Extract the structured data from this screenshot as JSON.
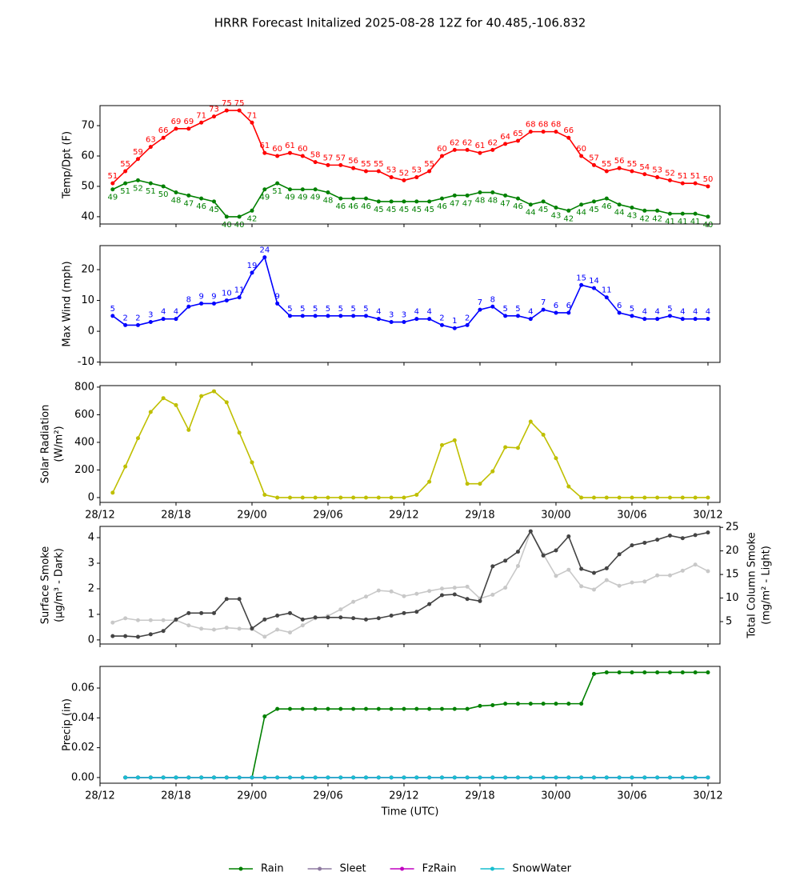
{
  "title": "HRRR Forecast Initalized 2025-08-28 12Z for 40.485,-106.832",
  "xlabel": "Time (UTC)",
  "xlim": [
    12,
    60.95
  ],
  "xticks": [
    {
      "value": 12,
      "label": "28/12"
    },
    {
      "value": 18,
      "label": "28/18"
    },
    {
      "value": 24,
      "label": "29/00"
    },
    {
      "value": 30,
      "label": "29/06"
    },
    {
      "value": 36,
      "label": "29/12"
    },
    {
      "value": 42,
      "label": "29/18"
    },
    {
      "value": 48,
      "label": "30/00"
    },
    {
      "value": 54,
      "label": "30/06"
    },
    {
      "value": 60,
      "label": "30/12"
    }
  ],
  "chart_data": [
    {
      "type": "line",
      "ylabel": [
        "Temp/Dpt (F)"
      ],
      "ylim": [
        37.6,
        76.6
      ],
      "yticks": [
        40,
        50,
        60,
        70
      ],
      "tick_labels": false,
      "x": [
        13,
        14,
        15,
        16,
        17,
        18,
        19,
        20,
        21,
        22,
        23,
        24,
        25,
        26,
        27,
        28,
        29,
        30,
        31,
        32,
        33,
        34,
        35,
        36,
        37,
        38,
        39,
        40,
        41,
        42,
        43,
        44,
        45,
        46,
        47,
        48,
        49,
        50,
        51,
        52,
        53,
        54,
        55,
        56,
        57,
        58,
        59,
        60
      ],
      "series": [
        {
          "color": "#ff0000",
          "labels": "above",
          "values": [
            51,
            55,
            59,
            63,
            66,
            69,
            69,
            71,
            73,
            75,
            75,
            71,
            61,
            60,
            61,
            60,
            58,
            57,
            57,
            56,
            55,
            55,
            53,
            52,
            53,
            55,
            60,
            62,
            62,
            61,
            62,
            64,
            65,
            68,
            68,
            68,
            66,
            60,
            57,
            55,
            56,
            55,
            54,
            53,
            52,
            51,
            51,
            50
          ]
        },
        {
          "color": "#008000",
          "labels": "below",
          "values": [
            49,
            51,
            52,
            51,
            50,
            48,
            47,
            46,
            45,
            40,
            40,
            42,
            49,
            51,
            49,
            49,
            49,
            48,
            46,
            46,
            46,
            45,
            45,
            45,
            45,
            45,
            46,
            47,
            47,
            48,
            48,
            47,
            46,
            44,
            45,
            43,
            42,
            44,
            45,
            46,
            44,
            43,
            42,
            42,
            41,
            41,
            41,
            40
          ]
        }
      ]
    },
    {
      "type": "line",
      "ylabel": [
        "Max Wind (mph)"
      ],
      "ylim": [
        -10.1,
        27.8
      ],
      "yticks": [
        -10,
        0,
        10,
        20
      ],
      "tick_labels": false,
      "x": [
        13,
        14,
        15,
        16,
        17,
        18,
        19,
        20,
        21,
        22,
        23,
        24,
        25,
        26,
        27,
        28,
        29,
        30,
        31,
        32,
        33,
        34,
        35,
        36,
        37,
        38,
        39,
        40,
        41,
        42,
        43,
        44,
        45,
        46,
        47,
        48,
        49,
        50,
        51,
        52,
        53,
        54,
        55,
        56,
        57,
        58,
        59,
        60
      ],
      "series": [
        {
          "color": "#0000ff",
          "labels": "above",
          "values": [
            5,
            2,
            2,
            3,
            4,
            4,
            8,
            9,
            9,
            10,
            11,
            19,
            24,
            9,
            5,
            5,
            5,
            5,
            5,
            5,
            5,
            4,
            3,
            3,
            4,
            4,
            2,
            1,
            2,
            7,
            8,
            5,
            5,
            4,
            7,
            6,
            6,
            15,
            14,
            11,
            6,
            5,
            4,
            4,
            5,
            4,
            4,
            4
          ]
        }
      ]
    },
    {
      "type": "line",
      "ylabel": [
        "Solar Radiation",
        "(W/m²)"
      ],
      "ylim": [
        -35,
        811
      ],
      "yticks": [
        0,
        200,
        400,
        600,
        800
      ],
      "tick_labels": true,
      "x": [
        13,
        14,
        15,
        16,
        17,
        18,
        19,
        20,
        21,
        22,
        23,
        24,
        25,
        26,
        27,
        28,
        29,
        30,
        31,
        32,
        33,
        34,
        35,
        36,
        37,
        38,
        39,
        40,
        41,
        42,
        43,
        44,
        45,
        46,
        47,
        48,
        49,
        50,
        51,
        52,
        53,
        54,
        55,
        56,
        57,
        58,
        59,
        60
      ],
      "series": [
        {
          "color": "#bfbf00",
          "values": [
            35,
            225,
            430,
            620,
            720,
            670,
            490,
            735,
            770,
            690,
            470,
            255,
            20,
            0,
            0,
            0,
            0,
            0,
            0,
            0,
            0,
            0,
            0,
            0,
            20,
            115,
            380,
            415,
            100,
            100,
            190,
            365,
            360,
            550,
            455,
            285,
            80,
            0,
            0,
            0,
            0,
            0,
            0,
            0,
            0,
            0,
            0,
            0
          ]
        }
      ]
    },
    {
      "type": "line",
      "ylabel": [
        "Surface Smoke",
        "(µg/m³ - Dark)"
      ],
      "y2label": [
        "Total Column Smoke",
        "(mg/m² - Light)"
      ],
      "ylim": [
        -0.16,
        4.44
      ],
      "yticks": [
        0,
        1,
        2,
        3,
        4
      ],
      "y2lim": [
        0.25,
        25.2
      ],
      "y2ticks": [
        5,
        10,
        15,
        20,
        25
      ],
      "tick_labels": false,
      "x": [
        13,
        14,
        15,
        16,
        17,
        18,
        19,
        20,
        21,
        22,
        23,
        24,
        25,
        26,
        27,
        28,
        29,
        30,
        31,
        32,
        33,
        34,
        35,
        36,
        37,
        38,
        39,
        40,
        41,
        42,
        43,
        44,
        45,
        46,
        47,
        48,
        49,
        50,
        51,
        52,
        53,
        54,
        55,
        56,
        57,
        58,
        59,
        60
      ],
      "series": [
        {
          "color": "#c8c8c8",
          "axis": "y2",
          "values": [
            4.8,
            5.7,
            5.3,
            5.3,
            5.3,
            5.3,
            4.2,
            3.5,
            3.3,
            3.7,
            3.5,
            3.4,
            1.8,
            3.3,
            2.7,
            4.2,
            5.7,
            6.2,
            7.6,
            9.2,
            10.3,
            11.6,
            11.4,
            10.4,
            10.9,
            11.5,
            12.0,
            12.2,
            12.4,
            9.9,
            10.7,
            12.2,
            16.8,
            24.1,
            19.3,
            14.7,
            16.0,
            12.5,
            11.8,
            13.8,
            12.6,
            13.3,
            13.5,
            14.8,
            14.8,
            15.8,
            17.1,
            15.7
          ]
        },
        {
          "color": "#444444",
          "values": [
            0.15,
            0.15,
            0.12,
            0.22,
            0.35,
            0.8,
            1.05,
            1.05,
            1.05,
            1.6,
            1.6,
            0.45,
            0.8,
            0.95,
            1.05,
            0.8,
            0.88,
            0.88,
            0.88,
            0.85,
            0.8,
            0.85,
            0.95,
            1.05,
            1.1,
            1.4,
            1.75,
            1.78,
            1.6,
            1.52,
            2.88,
            3.1,
            3.45,
            4.25,
            3.3,
            3.5,
            4.05,
            2.78,
            2.62,
            2.8,
            3.35,
            3.7,
            3.8,
            3.92,
            4.08,
            3.98,
            4.1,
            4.2
          ]
        }
      ]
    },
    {
      "type": "line",
      "ylabel": [
        "Precip (in)"
      ],
      "ylim": [
        -0.0038,
        0.0745
      ],
      "yticks": [
        {
          "value": 0,
          "label": "0.00"
        },
        {
          "value": 0.02,
          "label": "0.02"
        },
        {
          "value": 0.04,
          "label": "0.04"
        },
        {
          "value": 0.06,
          "label": "0.06"
        }
      ],
      "tick_labels": true,
      "legend": "lower center",
      "x": [
        14,
        15,
        16,
        17,
        18,
        19,
        20,
        21,
        22,
        23,
        24,
        25,
        26,
        27,
        28,
        29,
        30,
        31,
        32,
        33,
        34,
        35,
        36,
        37,
        38,
        39,
        40,
        41,
        42,
        43,
        44,
        45,
        46,
        47,
        48,
        49,
        50,
        51,
        52,
        53,
        54,
        55,
        56,
        57,
        58,
        59,
        60
      ],
      "series": [
        {
          "name": "Rain",
          "color": "#008000",
          "values": [
            0,
            0,
            0,
            0,
            0,
            0,
            0,
            0,
            0,
            0,
            0,
            0.041,
            0.046,
            0.046,
            0.046,
            0.046,
            0.046,
            0.046,
            0.046,
            0.046,
            0.046,
            0.046,
            0.046,
            0.046,
            0.046,
            0.046,
            0.046,
            0.046,
            0.048,
            0.0485,
            0.0495,
            0.0495,
            0.0495,
            0.0495,
            0.0495,
            0.0495,
            0.0495,
            0.0695,
            0.0705,
            0.0705,
            0.0705,
            0.0705,
            0.0705,
            0.0705,
            0.0705,
            0.0705,
            0.0705
          ]
        },
        {
          "name": "Sleet",
          "color": "#8e7aa0",
          "values": [
            0,
            0,
            0,
            0,
            0,
            0,
            0,
            0,
            0,
            0,
            0,
            0,
            0,
            0,
            0,
            0,
            0,
            0,
            0,
            0,
            0,
            0,
            0,
            0,
            0,
            0,
            0,
            0,
            0,
            0,
            0,
            0,
            0,
            0,
            0,
            0,
            0,
            0,
            0,
            0,
            0,
            0,
            0,
            0,
            0,
            0,
            0
          ]
        },
        {
          "name": "FzRain",
          "color": "#c000c0",
          "values": [
            0,
            0,
            0,
            0,
            0,
            0,
            0,
            0,
            0,
            0,
            0,
            0,
            0,
            0,
            0,
            0,
            0,
            0,
            0,
            0,
            0,
            0,
            0,
            0,
            0,
            0,
            0,
            0,
            0,
            0,
            0,
            0,
            0,
            0,
            0,
            0,
            0,
            0,
            0,
            0,
            0,
            0,
            0,
            0,
            0,
            0,
            0
          ]
        },
        {
          "name": "SnowWater",
          "color": "#17becf",
          "values": [
            0,
            0,
            0,
            0,
            0,
            0,
            0,
            0,
            0,
            0,
            0,
            0,
            0,
            0,
            0,
            0,
            0,
            0,
            0,
            0,
            0,
            0,
            0,
            0,
            0,
            0,
            0,
            0,
            0,
            0,
            0,
            0,
            0,
            0,
            0,
            0,
            0,
            0,
            0,
            0,
            0,
            0,
            0,
            0,
            0,
            0,
            0
          ]
        }
      ]
    }
  ]
}
